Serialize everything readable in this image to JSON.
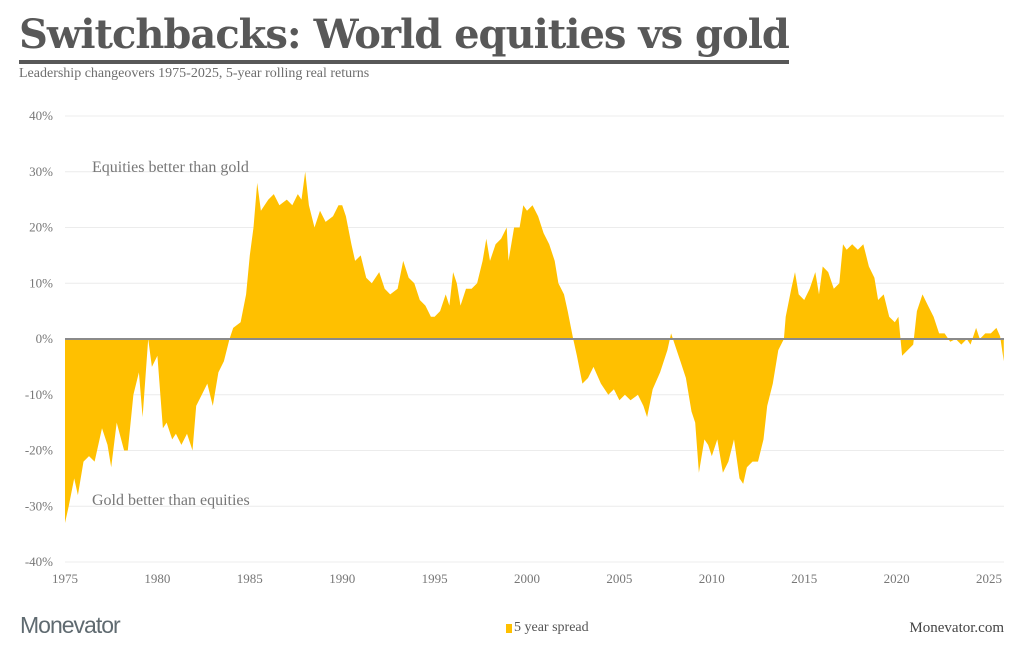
{
  "header": {
    "title": "Switchbacks: World equities vs gold",
    "subtitle": "Leadership changeovers 1975-2025, 5-year rolling real returns"
  },
  "footer": {
    "logo": "Monevator",
    "site": "Monevator.com"
  },
  "chart_data": {
    "type": "area",
    "title": "Switchbacks: World equities vs gold",
    "subtitle": "Leadership changeovers 1975-2025, 5-year rolling real returns",
    "xlabel": "",
    "ylabel": "",
    "xlim": [
      1975,
      2025.8
    ],
    "ylim": [
      -40,
      40
    ],
    "x_ticks": [
      "1975",
      "1980",
      "1985",
      "1990",
      "1995",
      "2000",
      "2005",
      "2010",
      "2015",
      "2020",
      "2025"
    ],
    "y_ticks": [
      "40%",
      "30%",
      "20%",
      "10%",
      "0%",
      "-10%",
      "-20%",
      "-30%",
      "-40%"
    ],
    "y_tick_values": [
      40,
      30,
      20,
      10,
      0,
      -10,
      -20,
      -30,
      -40
    ],
    "grid": "horizontal",
    "legend": {
      "position": "bottom-center",
      "entries": [
        "5 year spread"
      ]
    },
    "annotations": [
      "Equities better than gold",
      "Gold better than equities"
    ],
    "colors": {
      "area": "#FFC000",
      "zero_line": "#8a8a8a",
      "grid": "#ececec"
    },
    "series": [
      {
        "name": "5 year spread",
        "points": [
          [
            1975.0,
            -33
          ],
          [
            1975.2,
            -30
          ],
          [
            1975.5,
            -25
          ],
          [
            1975.7,
            -28
          ],
          [
            1976.0,
            -22
          ],
          [
            1976.3,
            -21
          ],
          [
            1976.6,
            -22
          ],
          [
            1977.0,
            -16
          ],
          [
            1977.3,
            -19
          ],
          [
            1977.5,
            -23
          ],
          [
            1977.8,
            -15
          ],
          [
            1978.2,
            -20
          ],
          [
            1978.4,
            -20
          ],
          [
            1978.7,
            -10
          ],
          [
            1979.0,
            -6
          ],
          [
            1979.2,
            -14
          ],
          [
            1979.5,
            0
          ],
          [
            1979.7,
            -5
          ],
          [
            1980.0,
            -3
          ],
          [
            1980.3,
            -16
          ],
          [
            1980.5,
            -15
          ],
          [
            1980.8,
            -18
          ],
          [
            1981.0,
            -17
          ],
          [
            1981.3,
            -19
          ],
          [
            1981.6,
            -17
          ],
          [
            1981.9,
            -20
          ],
          [
            1982.1,
            -12
          ],
          [
            1982.4,
            -10
          ],
          [
            1982.7,
            -8
          ],
          [
            1983.0,
            -12
          ],
          [
            1983.3,
            -6
          ],
          [
            1983.6,
            -4
          ],
          [
            1983.9,
            0
          ],
          [
            1984.1,
            2
          ],
          [
            1984.5,
            3
          ],
          [
            1984.8,
            8
          ],
          [
            1985.0,
            15
          ],
          [
            1985.2,
            20
          ],
          [
            1985.4,
            28
          ],
          [
            1985.6,
            23
          ],
          [
            1986.0,
            25
          ],
          [
            1986.3,
            26
          ],
          [
            1986.6,
            24
          ],
          [
            1987.0,
            25
          ],
          [
            1987.3,
            24
          ],
          [
            1987.6,
            26
          ],
          [
            1987.8,
            25
          ],
          [
            1988.0,
            30
          ],
          [
            1988.2,
            24
          ],
          [
            1988.5,
            20
          ],
          [
            1988.8,
            23
          ],
          [
            1989.1,
            21
          ],
          [
            1989.5,
            22
          ],
          [
            1989.8,
            24
          ],
          [
            1990.0,
            24
          ],
          [
            1990.2,
            22
          ],
          [
            1990.5,
            17
          ],
          [
            1990.7,
            14
          ],
          [
            1991.0,
            15
          ],
          [
            1991.3,
            11
          ],
          [
            1991.6,
            10
          ],
          [
            1992.0,
            12
          ],
          [
            1992.3,
            9
          ],
          [
            1992.6,
            8
          ],
          [
            1993.0,
            9
          ],
          [
            1993.3,
            14
          ],
          [
            1993.6,
            11
          ],
          [
            1993.9,
            10
          ],
          [
            1994.2,
            7
          ],
          [
            1994.5,
            6
          ],
          [
            1994.8,
            4
          ],
          [
            1995.0,
            4
          ],
          [
            1995.3,
            5
          ],
          [
            1995.6,
            8
          ],
          [
            1995.8,
            6
          ],
          [
            1996.0,
            12
          ],
          [
            1996.2,
            10
          ],
          [
            1996.4,
            6
          ],
          [
            1996.7,
            9
          ],
          [
            1997.0,
            9
          ],
          [
            1997.3,
            10
          ],
          [
            1997.6,
            14
          ],
          [
            1997.8,
            18
          ],
          [
            1998.0,
            14
          ],
          [
            1998.3,
            17
          ],
          [
            1998.6,
            18
          ],
          [
            1998.9,
            20
          ],
          [
            1999.0,
            14
          ],
          [
            1999.3,
            20
          ],
          [
            1999.6,
            20
          ],
          [
            1999.8,
            24
          ],
          [
            2000.0,
            23
          ],
          [
            2000.3,
            24
          ],
          [
            2000.6,
            22
          ],
          [
            2000.9,
            19
          ],
          [
            2001.2,
            17
          ],
          [
            2001.5,
            14
          ],
          [
            2001.7,
            10
          ],
          [
            2002.0,
            8
          ],
          [
            2002.2,
            5
          ],
          [
            2002.5,
            0
          ],
          [
            2002.7,
            -3
          ],
          [
            2003.0,
            -8
          ],
          [
            2003.3,
            -7
          ],
          [
            2003.6,
            -5
          ],
          [
            2004.0,
            -8
          ],
          [
            2004.4,
            -10
          ],
          [
            2004.7,
            -9
          ],
          [
            2005.0,
            -11
          ],
          [
            2005.3,
            -10
          ],
          [
            2005.6,
            -11
          ],
          [
            2006.0,
            -10
          ],
          [
            2006.3,
            -12
          ],
          [
            2006.5,
            -14
          ],
          [
            2006.8,
            -9
          ],
          [
            2007.2,
            -6
          ],
          [
            2007.6,
            -2
          ],
          [
            2007.8,
            1
          ],
          [
            2008.0,
            -1
          ],
          [
            2008.3,
            -4
          ],
          [
            2008.6,
            -7
          ],
          [
            2008.9,
            -13
          ],
          [
            2009.1,
            -15
          ],
          [
            2009.3,
            -24
          ],
          [
            2009.6,
            -18
          ],
          [
            2009.8,
            -19
          ],
          [
            2010.0,
            -21
          ],
          [
            2010.3,
            -18
          ],
          [
            2010.6,
            -24
          ],
          [
            2010.9,
            -22
          ],
          [
            2011.2,
            -18
          ],
          [
            2011.5,
            -25
          ],
          [
            2011.7,
            -26
          ],
          [
            2011.9,
            -23
          ],
          [
            2012.2,
            -22
          ],
          [
            2012.5,
            -22
          ],
          [
            2012.8,
            -18
          ],
          [
            2013.0,
            -12
          ],
          [
            2013.3,
            -8
          ],
          [
            2013.6,
            -2
          ],
          [
            2013.9,
            0
          ],
          [
            2014.0,
            4
          ],
          [
            2014.3,
            9
          ],
          [
            2014.5,
            12
          ],
          [
            2014.7,
            8
          ],
          [
            2015.0,
            7
          ],
          [
            2015.3,
            9
          ],
          [
            2015.6,
            12
          ],
          [
            2015.8,
            8
          ],
          [
            2016.0,
            13
          ],
          [
            2016.3,
            12
          ],
          [
            2016.6,
            9
          ],
          [
            2016.9,
            10
          ],
          [
            2017.1,
            17
          ],
          [
            2017.3,
            16
          ],
          [
            2017.6,
            17
          ],
          [
            2017.9,
            16
          ],
          [
            2018.2,
            17
          ],
          [
            2018.5,
            13
          ],
          [
            2018.8,
            11
          ],
          [
            2019.0,
            7
          ],
          [
            2019.3,
            8
          ],
          [
            2019.6,
            4
          ],
          [
            2019.9,
            3
          ],
          [
            2020.1,
            4
          ],
          [
            2020.3,
            -3
          ],
          [
            2020.6,
            -2
          ],
          [
            2020.9,
            -1
          ],
          [
            2021.1,
            5
          ],
          [
            2021.4,
            8
          ],
          [
            2021.7,
            6
          ],
          [
            2022.0,
            4
          ],
          [
            2022.3,
            1
          ],
          [
            2022.6,
            1
          ],
          [
            2022.9,
            -0.5
          ],
          [
            2023.2,
            0
          ],
          [
            2023.5,
            -1
          ],
          [
            2023.8,
            0
          ],
          [
            2024.0,
            -1
          ],
          [
            2024.3,
            2
          ],
          [
            2024.5,
            0
          ],
          [
            2024.8,
            1
          ],
          [
            2025.1,
            1
          ],
          [
            2025.4,
            2
          ],
          [
            2025.6,
            0.5
          ],
          [
            2025.8,
            -4
          ]
        ]
      }
    ]
  }
}
